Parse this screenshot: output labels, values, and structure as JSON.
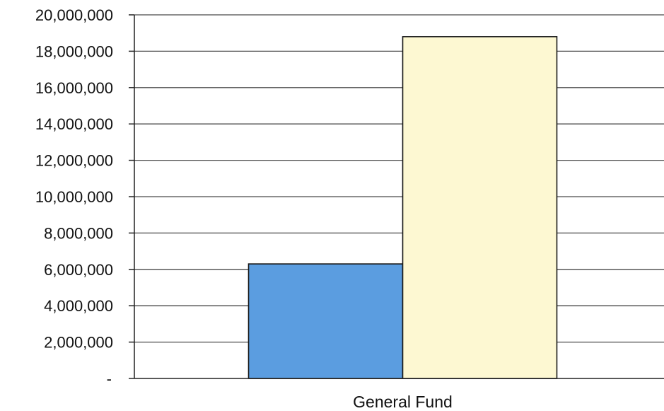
{
  "chart_data": {
    "type": "bar",
    "categories": [
      "General Fund"
    ],
    "series": [
      {
        "values": [
          6300000
        ],
        "color": "#5b9de0"
      },
      {
        "values": [
          18800000
        ],
        "color": "#fdf8d2"
      }
    ],
    "ylim": [
      0,
      20000000
    ],
    "y_ticks": [
      {
        "value": 0,
        "label": "-"
      },
      {
        "value": 2000000,
        "label": "2,000,000"
      },
      {
        "value": 4000000,
        "label": "4,000,000"
      },
      {
        "value": 6000000,
        "label": "6,000,000"
      },
      {
        "value": 8000000,
        "label": "8,000,000"
      },
      {
        "value": 10000000,
        "label": "10,000,000"
      },
      {
        "value": 12000000,
        "label": "12,000,000"
      },
      {
        "value": 14000000,
        "label": "14,000,000"
      },
      {
        "value": 16000000,
        "label": "16,000,000"
      },
      {
        "value": 18000000,
        "label": "18,000,000"
      },
      {
        "value": 20000000,
        "label": "20,000,000"
      }
    ],
    "grid": true,
    "legend": "none"
  }
}
